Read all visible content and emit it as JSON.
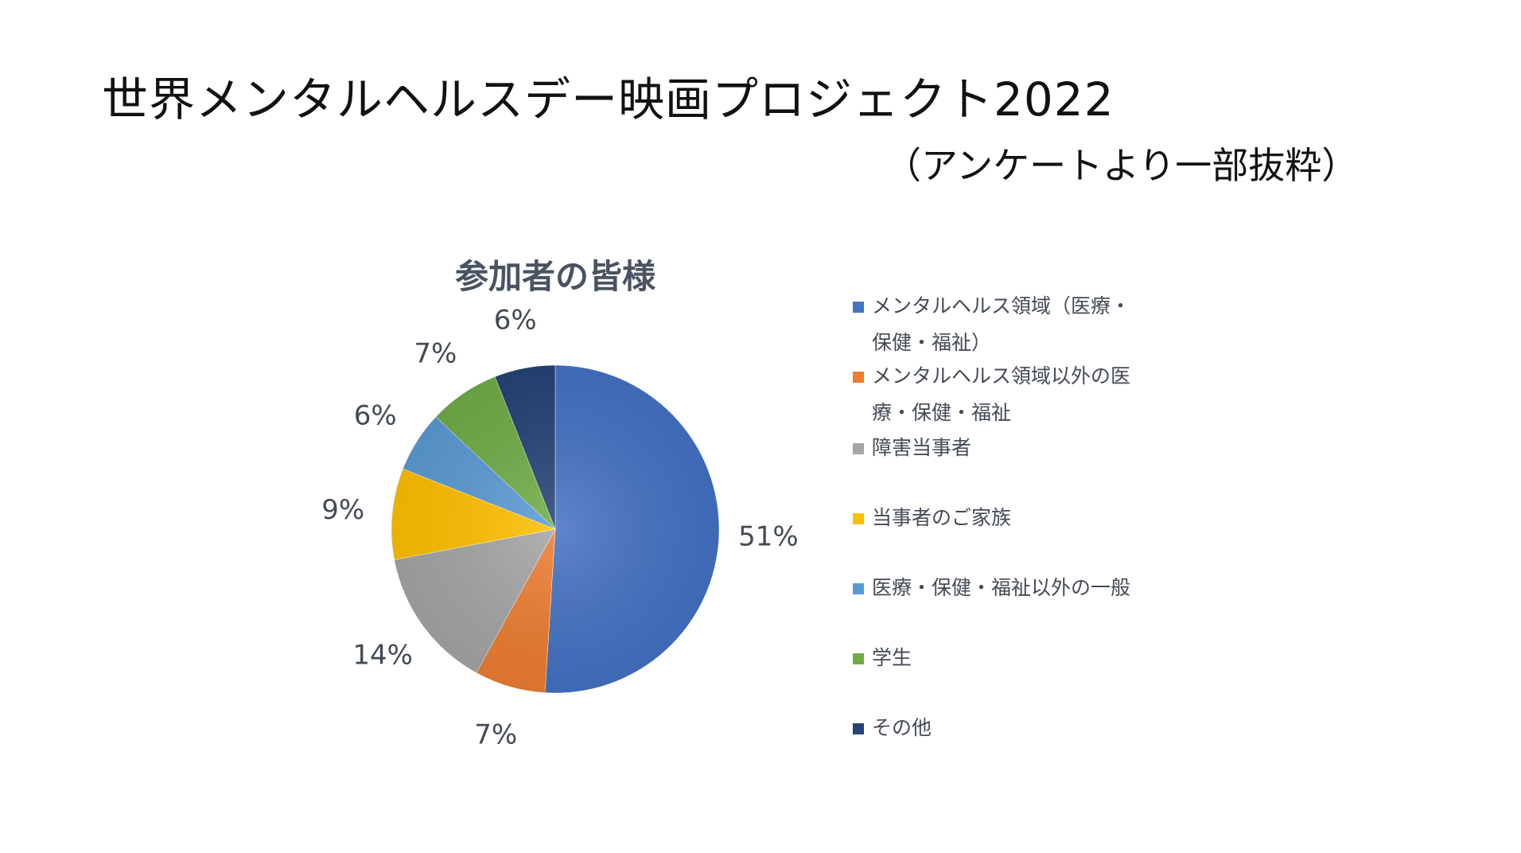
{
  "slide": {
    "title": "世界メンタルヘルスデー映画プロジェクト2022",
    "subtitle": "（アンケートより一部抜粋）"
  },
  "chart_data": {
    "type": "pie",
    "title": "参加者の皆様",
    "categories": [
      "メンタルヘルス領域（医療・保健・福祉）",
      "メンタルヘルス領域以外の医療・保健・福祉",
      "障害当事者",
      "当事者のご家族",
      "医療・保健・福祉以外の一般",
      "学生",
      "その他"
    ],
    "values": [
      51,
      7,
      14,
      9,
      6,
      7,
      6
    ],
    "data_labels": [
      "51%",
      "7%",
      "14%",
      "9%",
      "6%",
      "7%",
      "6%"
    ],
    "colors": [
      "#4472C4",
      "#ED7D31",
      "#A5A5A5",
      "#FFC000",
      "#5B9BD5",
      "#70AD47",
      "#264478"
    ],
    "legend_position": "right"
  },
  "legend": {
    "items": [
      {
        "lines": [
          "メンタルヘルス領域（医療・",
          "保健・福祉）"
        ]
      },
      {
        "lines": [
          "メンタルヘルス領域以外の医",
          "療・保健・福祉"
        ]
      },
      {
        "lines": [
          "障害当事者"
        ]
      },
      {
        "lines": [
          "当事者のご家族"
        ]
      },
      {
        "lines": [
          "医療・保健・福祉以外の一般"
        ]
      },
      {
        "lines": [
          "学生"
        ]
      },
      {
        "lines": [
          "その他"
        ]
      }
    ]
  }
}
